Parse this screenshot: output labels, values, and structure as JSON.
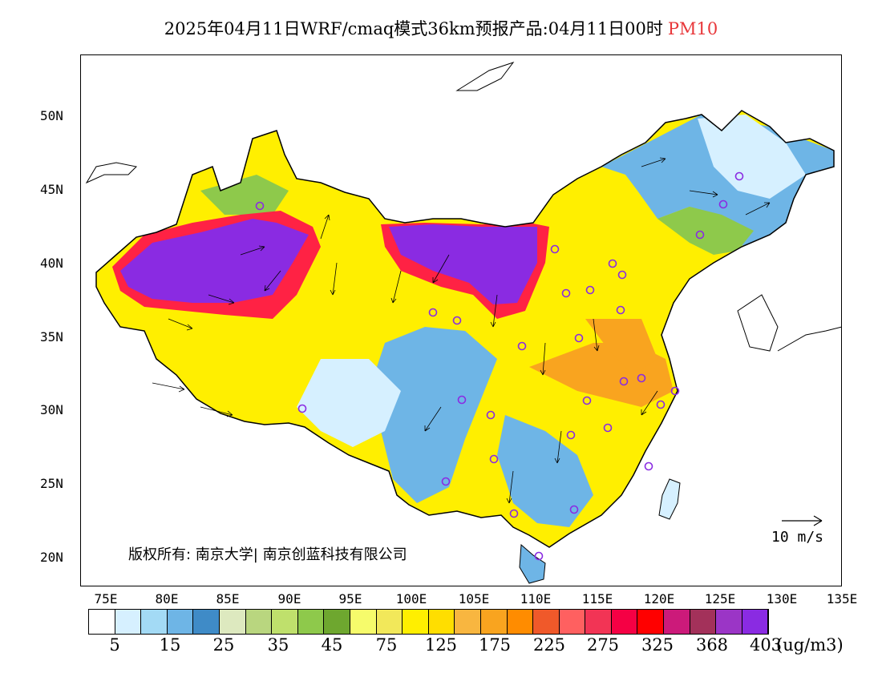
{
  "title": {
    "main": "2025年04月11日WRF/cmaq模式36km预报产品:04月11日00时",
    "pollutant": "PM10"
  },
  "map": {
    "lat_labels": [
      "50N",
      "45N",
      "40N",
      "35N",
      "30N",
      "25N",
      "20N"
    ],
    "lon_labels": [
      "75E",
      "80E",
      "85E",
      "90E",
      "95E",
      "100E",
      "105E",
      "110E",
      "115E",
      "120E",
      "125E",
      "130E",
      "135E"
    ],
    "copyright": "版权所有: 南京大学| 南京创蓝科技有限公司",
    "wind_reference": "10 m/s",
    "region_colors": {
      "low": "#5fa3dc",
      "light": "#d9efff",
      "green": "#8cc94e",
      "yellow": "#fff500",
      "orange": "#ff8c00",
      "red": "#ff2244",
      "purple": "#8a2be2"
    },
    "city_marker_color": "#8a2be2"
  },
  "colorbar": {
    "colors": [
      "#ffffff",
      "#d6f0ff",
      "#a3daf5",
      "#6eb5e6",
      "#3f8bc7",
      "#dde9bf",
      "#b9d67f",
      "#bfe06c",
      "#8ec94b",
      "#6ea72f",
      "#f6fb6b",
      "#f2e85a",
      "#ffef00",
      "#ffde00",
      "#f8b640",
      "#f9a41f",
      "#ff8c00",
      "#f0592a",
      "#ff6060",
      "#f23455",
      "#f50044",
      "#ff0000",
      "#cc1a7a",
      "#a3315a",
      "#9b35c6",
      "#8a2be2"
    ],
    "labels": [
      "5",
      "15",
      "25",
      "35",
      "45",
      "75",
      "125",
      "175",
      "225",
      "275",
      "325",
      "368",
      "403"
    ],
    "units": "(ug/m3)"
  }
}
